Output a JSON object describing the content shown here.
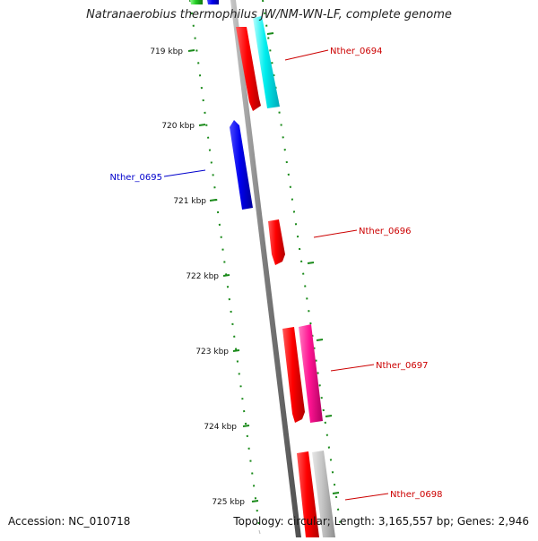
{
  "title": "Natranaerobius thermophilus JW/NM-WN-LF, complete genome",
  "footer": {
    "accession": "Accession: NC_010718",
    "stats": "Topology: circular; Length: 3,165,557 bp; Genes: 2,946"
  },
  "ticks": [
    "719 kbp",
    "720 kbp",
    "721 kbp",
    "722 kbp",
    "723 kbp",
    "724 kbp",
    "725 kbp"
  ],
  "genes": [
    {
      "label": "Nther_0694",
      "color": "#cc0000"
    },
    {
      "label": "Nther_0695",
      "color": "#0000cc"
    },
    {
      "label": "Nther_0696",
      "color": "#cc0000"
    },
    {
      "label": "Nther_0697",
      "color": "#cc0000"
    },
    {
      "label": "Nther_0698",
      "color": "#cc0000"
    }
  ],
  "colors": {
    "backbone": "#7a7a7a",
    "tick": "#1a8a1a",
    "forward_gene": "#ff0000",
    "reverse_gene": "#0000ee",
    "cyan_feature": "#00e5ee",
    "pink_feature": "#ff1493",
    "gray_feature": "#bdbdbd",
    "green_feature": "#22bb22"
  }
}
